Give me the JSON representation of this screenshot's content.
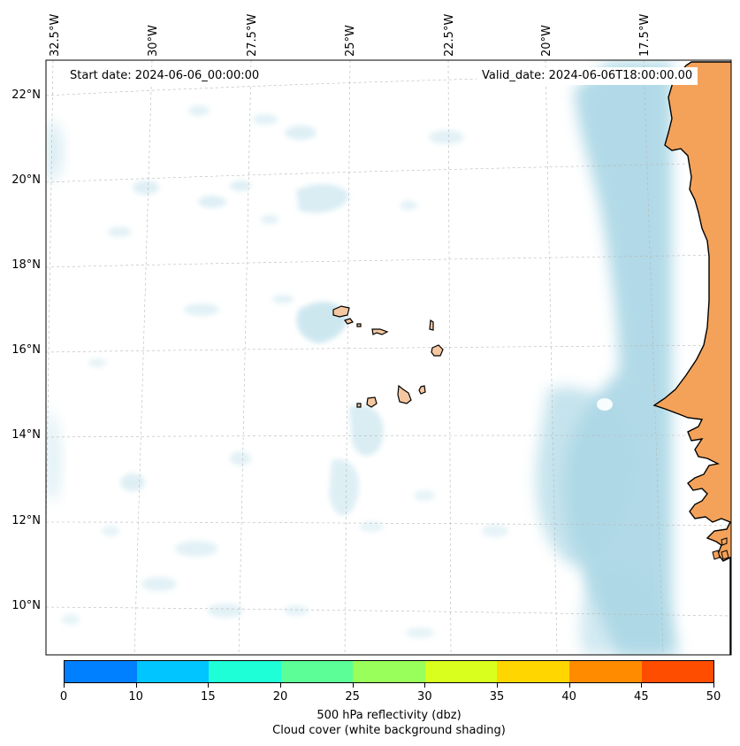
{
  "annotations": {
    "start_date": "Start date: 2024-06-06_00:00:00",
    "valid_date": "Valid_date: 2024-06-06T18:00:00.00"
  },
  "map": {
    "lon_labels": [
      "32.5°W",
      "30°W",
      "27.5°W",
      "25°W",
      "22.5°W",
      "20°W",
      "17.5°W"
    ],
    "lat_labels": [
      "22°N",
      "20°N",
      "18°N",
      "16°N",
      "14°N",
      "12°N",
      "10°N"
    ],
    "land_color": "#f4a25a",
    "cloud_color": "#add8e6",
    "coastline_color": "#000000",
    "islands_color": "#f5c7a0"
  },
  "colorbar": {
    "ticks": [
      "0",
      "10",
      "15",
      "20",
      "25",
      "30",
      "35",
      "40",
      "45",
      "50"
    ],
    "colors": [
      "#007fff",
      "#00c5ff",
      "#1effd8",
      "#5cff97",
      "#99ff5a",
      "#d8ff1e",
      "#ffd600",
      "#ff8c00",
      "#ff4d00"
    ],
    "label_line1": "500 hPa reflectivity (dbz)",
    "label_line2": "Cloud cover (white background shading)"
  }
}
